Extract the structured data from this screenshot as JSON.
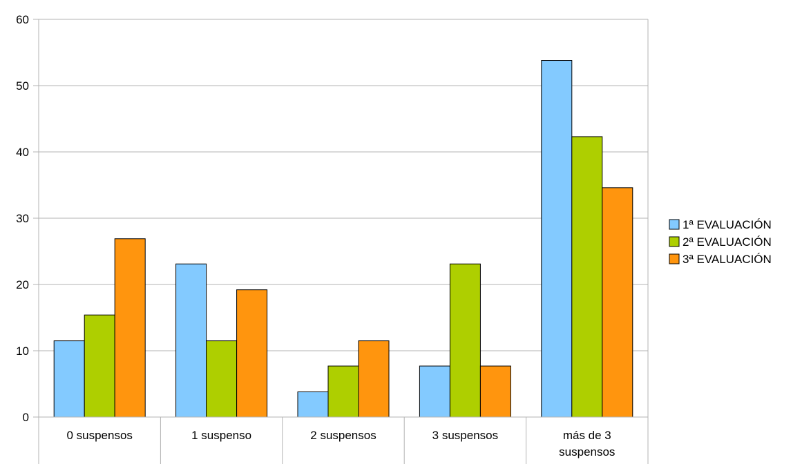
{
  "chart_data": {
    "type": "bar",
    "title": "",
    "xlabel": "",
    "ylabel": "",
    "ylim": [
      0,
      60
    ],
    "yticks": [
      0,
      10,
      20,
      30,
      40,
      50,
      60
    ],
    "grid": "horizontal",
    "legend": "right",
    "categories": [
      [
        "0 suspensos"
      ],
      [
        "1 suspenso"
      ],
      [
        "2 suspensos"
      ],
      [
        "3 suspensos"
      ],
      [
        "más de 3",
        "suspensos"
      ]
    ],
    "series": [
      {
        "name": "1ª EVALUACIÓN",
        "color": "#83caff",
        "values": [
          11.5,
          23.1,
          3.8,
          7.7,
          53.8
        ]
      },
      {
        "name": "2ª EVALUACIÓN",
        "color": "#aecf00",
        "values": [
          15.4,
          11.5,
          7.7,
          23.1,
          42.3
        ]
      },
      {
        "name": "3ª EVALUACIÓN",
        "color": "#ff950e",
        "values": [
          26.9,
          19.2,
          11.5,
          7.7,
          34.6
        ]
      }
    ]
  }
}
